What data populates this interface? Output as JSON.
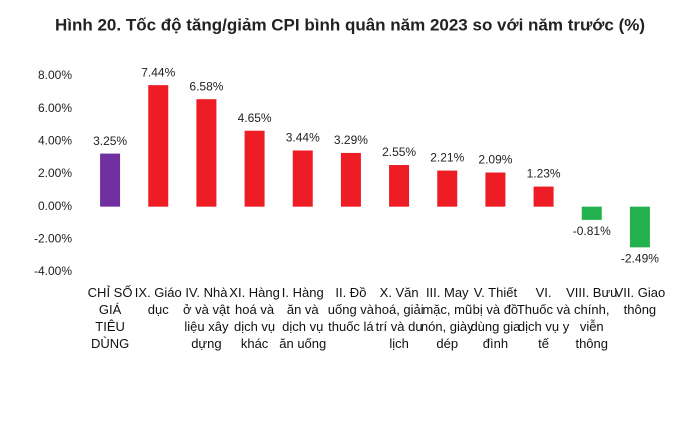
{
  "chart_data": {
    "type": "bar",
    "title": "Hình 20. Tốc độ tăng/giảm CPI bình quân năm 2023 so với năm trước (%)",
    "categories": [
      "CHỈ SỐ GIÁ TIÊU DÙNG",
      "IX. Giáo dục",
      "IV. Nhà ở và vật liệu xây dựng",
      "XI. Hàng hoá và dịch vụ khác",
      "I. Hàng ăn và dịch vụ ăn uống",
      "II. Đồ uống và thuốc lá",
      "X. Văn hoá, giải trí và du lịch",
      "III. May mặc, mũ nón, giày dép",
      "V. Thiết bị và đồ dùng gia đình",
      "VI. Thuốc và dịch vụ y tế",
      "VIII. Bưu chính, viễn thông",
      "VII. Giao thông"
    ],
    "values": [
      3.25,
      7.44,
      6.58,
      4.65,
      3.44,
      3.29,
      2.55,
      2.21,
      2.09,
      1.23,
      -0.81,
      -2.49
    ],
    "value_labels": [
      "3.25%",
      "7.44%",
      "6.58%",
      "4.65%",
      "3.44%",
      "3.29%",
      "2.55%",
      "2.21%",
      "2.09%",
      "1.23%",
      "-0.81%",
      "-2.49%"
    ],
    "colors": [
      "#7030a0",
      "#ee1c25",
      "#ee1c25",
      "#ee1c25",
      "#ee1c25",
      "#ee1c25",
      "#ee1c25",
      "#ee1c25",
      "#ee1c25",
      "#ee1c25",
      "#22b14c",
      "#22b14c"
    ],
    "ylim": [
      -4,
      8
    ],
    "yticks": [
      {
        "value": 8,
        "label": "8.00%"
      },
      {
        "value": 6,
        "label": "6.00%"
      },
      {
        "value": 4,
        "label": "4.00%"
      },
      {
        "value": 2,
        "label": "2.00%"
      },
      {
        "value": 0,
        "label": "0.00%"
      },
      {
        "value": -2,
        "label": "-2.00%"
      },
      {
        "value": -4,
        "label": "-4.00%"
      }
    ],
    "grid": false
  }
}
